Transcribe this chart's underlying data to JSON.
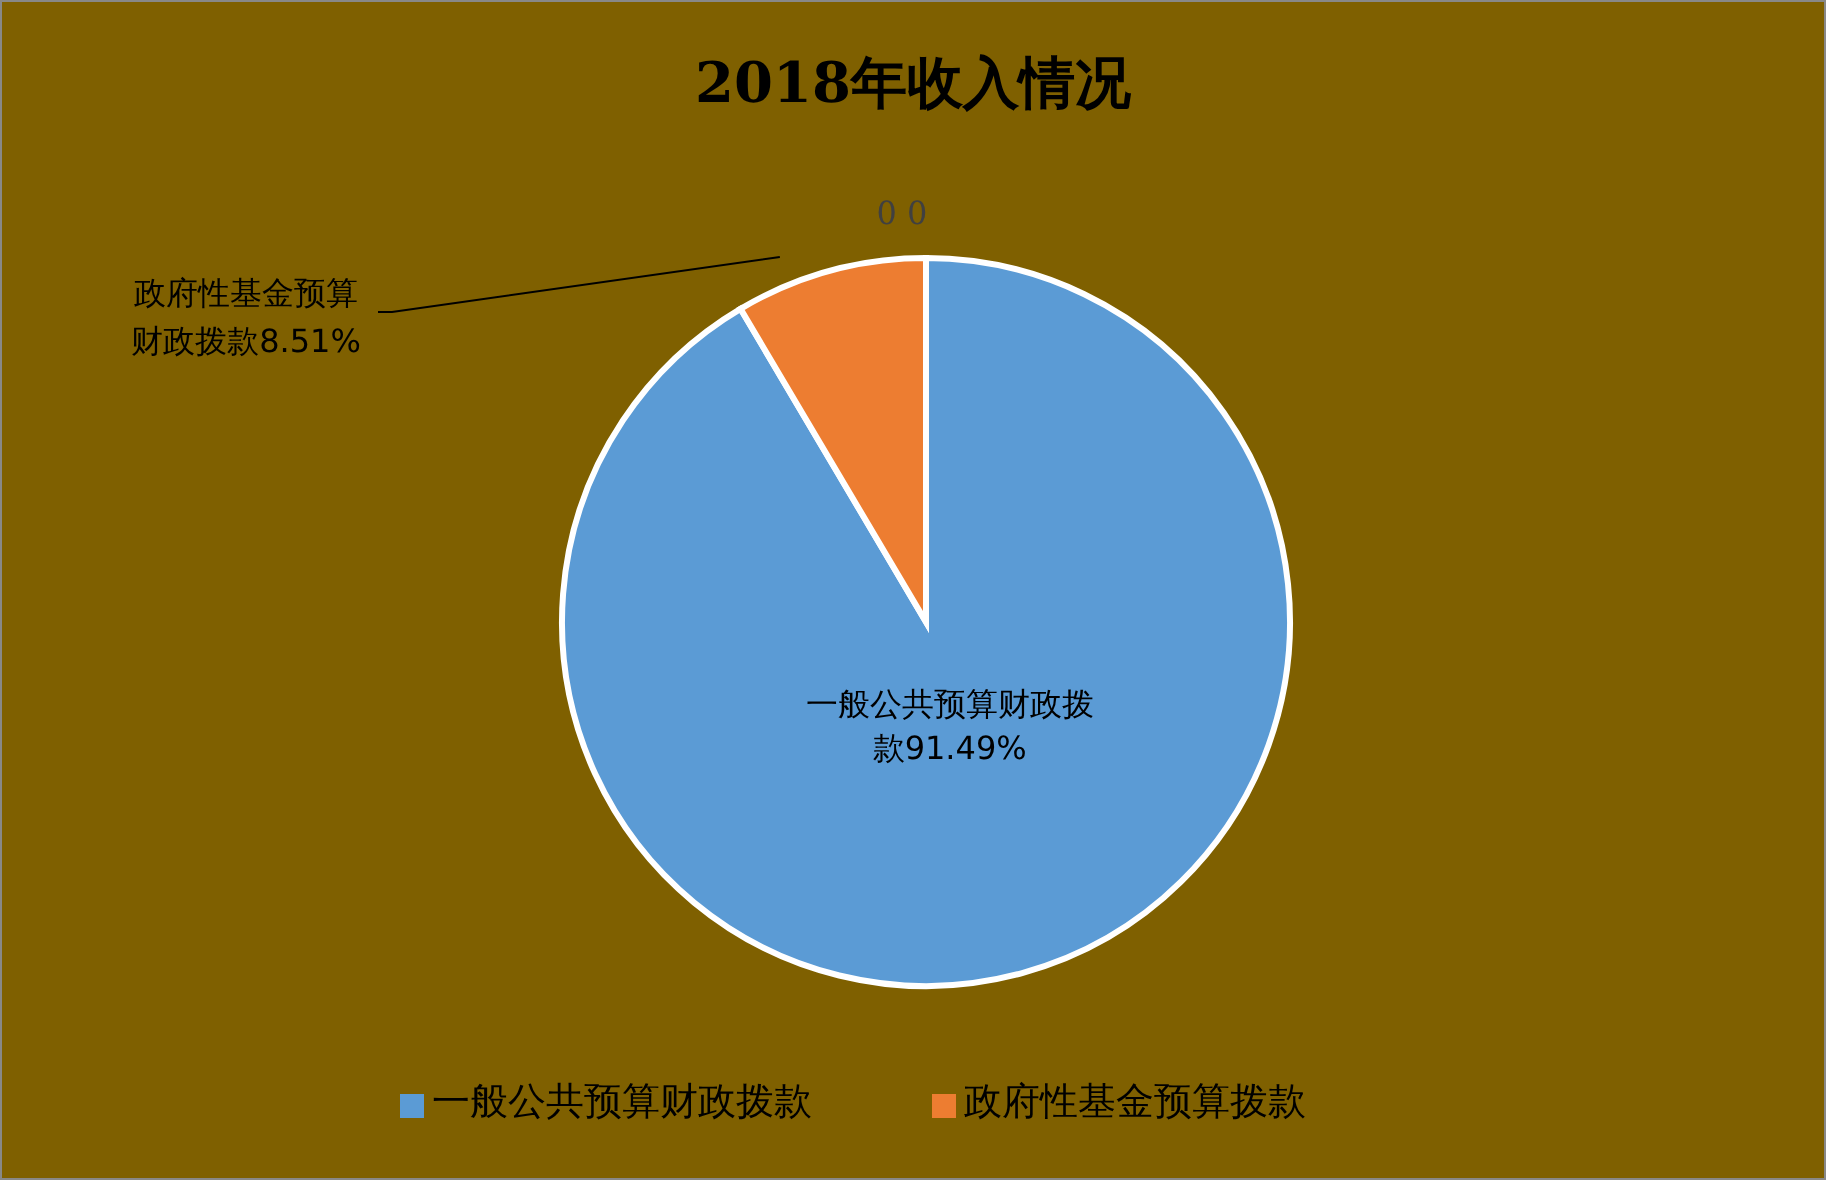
{
  "chart_data": {
    "type": "pie",
    "title": "2018年收入情况",
    "categories": [
      "一般公共预算财政拨款",
      "政府性基金预算拨款"
    ],
    "values": [
      91.49,
      8.51
    ],
    "colors": [
      "#5b9bd5",
      "#ed7d31"
    ],
    "value_labels": [
      "一般公共预算财政拨款91.49%",
      "政府性基金预算财政拨款8.51%"
    ],
    "annotations": [
      "0 0"
    ],
    "legend": "bottom"
  }
}
